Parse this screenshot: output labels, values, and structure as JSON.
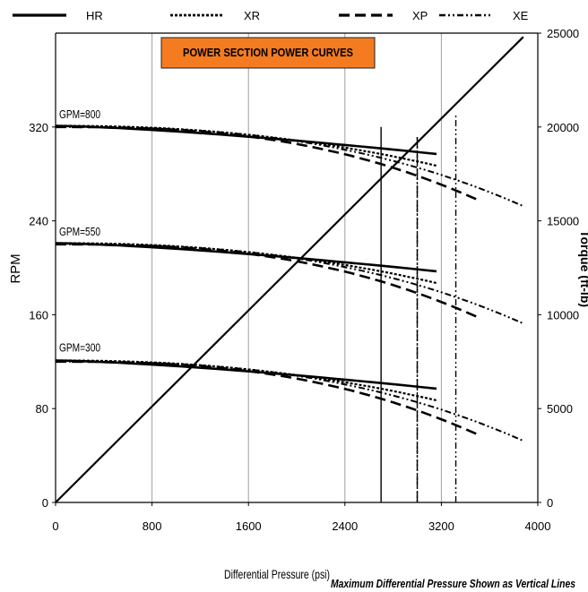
{
  "chart_data": {
    "type": "line",
    "title": "POWER SECTION POWER CURVES",
    "title_bg": "#f47b20",
    "title_fg": "#ffffff",
    "xlabel": "Differential Pressure (psi)",
    "footnote": "Maximum Differential Pressure Shown as Vertical Lines",
    "ylabel_left": "RPM",
    "ylabel_right": "Torque (ft-lb)",
    "xlim": [
      0,
      4000
    ],
    "ylim_left": [
      0,
      400
    ],
    "ylim_right": [
      0,
      25000
    ],
    "x_ticks": [
      0,
      800,
      1600,
      2400,
      3200,
      4000
    ],
    "y_ticks_left": [
      0,
      80,
      160,
      240,
      320
    ],
    "y_ticks_right": [
      0,
      5000,
      10000,
      15000,
      20000,
      25000
    ],
    "grid": "vertical",
    "legend_position": "top",
    "legend": [
      {
        "key": "HR",
        "label": "HR",
        "style": "solid"
      },
      {
        "key": "XR",
        "label": "XR",
        "style": "dotted"
      },
      {
        "key": "XP",
        "label": "XP",
        "style": "dashed"
      },
      {
        "key": "XE",
        "label": "XE",
        "style": "dashdotdot"
      }
    ],
    "group_labels": [
      {
        "text": "GPM=800",
        "rpm": 320
      },
      {
        "text": "GPM=550",
        "rpm": 220
      },
      {
        "text": "GPM=300",
        "rpm": 121
      }
    ],
    "rpm_curves": [
      {
        "group": "GPM=800",
        "series": "HR",
        "x": [
          0,
          3160
        ],
        "y": [
          321,
          297
        ],
        "curve": 0.4
      },
      {
        "group": "GPM=800",
        "series": "XR",
        "x": [
          0,
          3160
        ],
        "y": [
          321,
          287
        ],
        "curve": 1.2
      },
      {
        "group": "GPM=800",
        "series": "XP",
        "x": [
          0,
          3500
        ],
        "y": [
          320,
          258
        ],
        "curve": 1.6
      },
      {
        "group": "GPM=800",
        "series": "XE",
        "x": [
          0,
          3870
        ],
        "y": [
          320,
          253
        ],
        "curve": 1.6
      },
      {
        "group": "GPM=550",
        "series": "HR",
        "x": [
          0,
          3160
        ],
        "y": [
          221,
          197
        ],
        "curve": 0.4
      },
      {
        "group": "GPM=550",
        "series": "XR",
        "x": [
          0,
          3160
        ],
        "y": [
          221,
          187
        ],
        "curve": 1.2
      },
      {
        "group": "GPM=550",
        "series": "XP",
        "x": [
          0,
          3500
        ],
        "y": [
          220,
          158
        ],
        "curve": 1.6
      },
      {
        "group": "GPM=550",
        "series": "XE",
        "x": [
          0,
          3870
        ],
        "y": [
          220,
          153
        ],
        "curve": 1.6
      },
      {
        "group": "GPM=300",
        "series": "HR",
        "x": [
          0,
          3160
        ],
        "y": [
          121,
          97
        ],
        "curve": 0.4
      },
      {
        "group": "GPM=300",
        "series": "XR",
        "x": [
          0,
          3160
        ],
        "y": [
          121,
          87
        ],
        "curve": 1.2
      },
      {
        "group": "GPM=300",
        "series": "XP",
        "x": [
          0,
          3500
        ],
        "y": [
          120,
          58
        ],
        "curve": 1.6
      },
      {
        "group": "GPM=300",
        "series": "XE",
        "x": [
          0,
          3870
        ],
        "y": [
          120,
          53
        ],
        "curve": 1.6
      }
    ],
    "torque_line": [
      {
        "x": 0,
        "torque": 0
      },
      {
        "x": 3880,
        "torque": 24800
      }
    ],
    "max_pressure_lines": [
      {
        "series": "HR",
        "x": 2700,
        "rpm_top": 320
      },
      {
        "series": "XR",
        "x": 3000,
        "rpm_top": 313
      },
      {
        "series": "XP",
        "x": 3000,
        "rpm_top": 313
      },
      {
        "series": "XE",
        "x": 3320,
        "rpm_top": 330
      }
    ]
  }
}
